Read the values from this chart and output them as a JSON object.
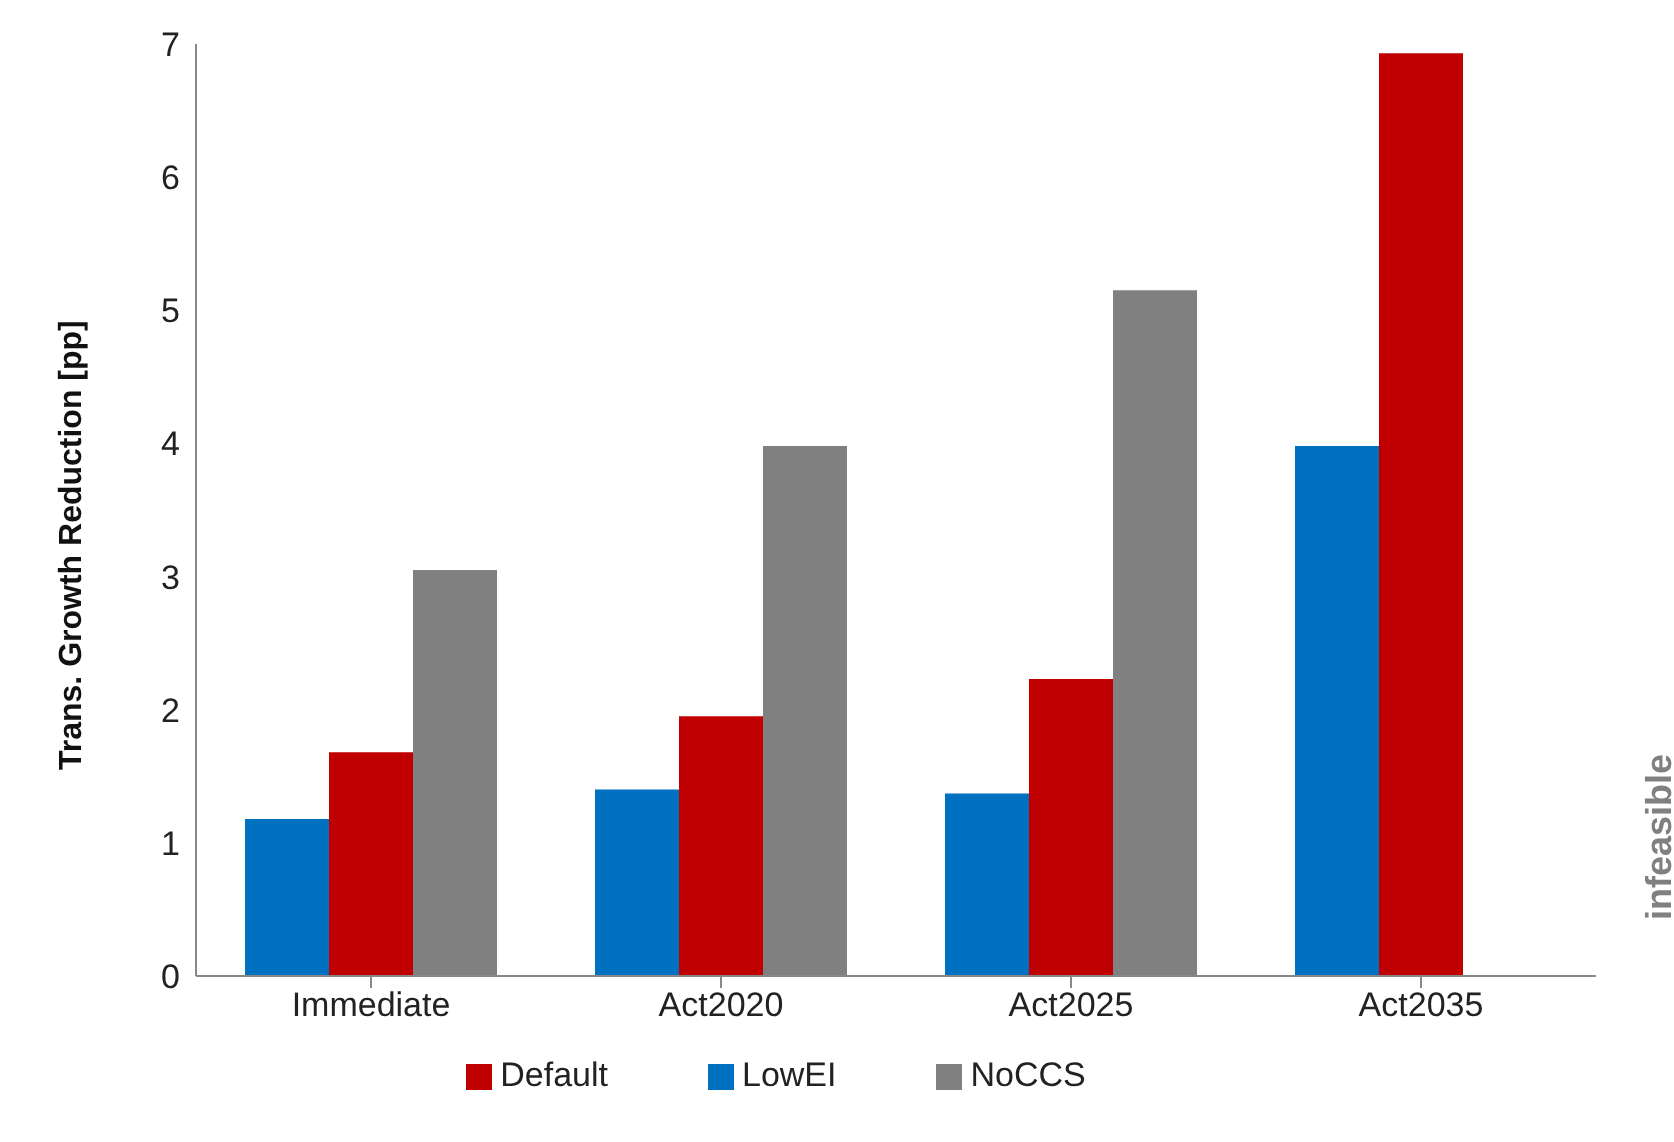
{
  "chart_data": {
    "type": "bar",
    "ylabel": "Trans. Growth Reduction [pp]",
    "categories": [
      "Immediate",
      "Act2020",
      "Act2025",
      "Act2035"
    ],
    "series": [
      {
        "name": "LowEI",
        "color": "#0070c0",
        "values": [
          1.18,
          1.4,
          1.37,
          3.98
        ]
      },
      {
        "name": "Default",
        "color": "#c00000",
        "values": [
          1.68,
          1.95,
          2.23,
          6.93
        ]
      },
      {
        "name": "NoCCS",
        "color": "#808080",
        "values": [
          3.05,
          3.98,
          5.15,
          null
        ]
      }
    ],
    "ylim": [
      0,
      7
    ],
    "yticks": [
      0,
      1,
      2,
      3,
      4,
      5,
      6,
      7
    ],
    "grid": false,
    "legend": "bottom",
    "annotations": [
      "infeasible"
    ]
  }
}
